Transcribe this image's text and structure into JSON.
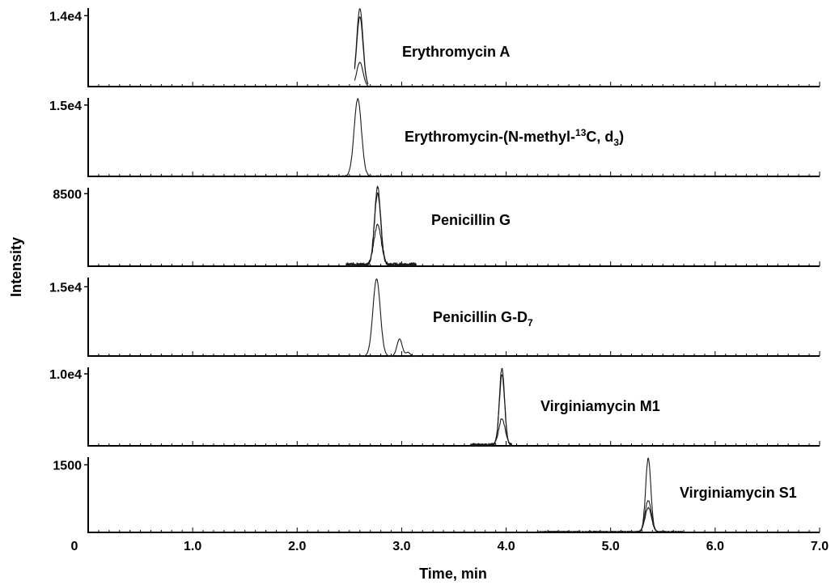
{
  "chart_data": {
    "type": "line",
    "title": "",
    "xlabel": "Time, min",
    "ylabel": "Intensity",
    "xlim": [
      0.0,
      7.0
    ],
    "x_ticks": [
      "1.0",
      "2.0",
      "3.0",
      "4.0",
      "5.0",
      "6.0",
      "7.0"
    ],
    "x_origin_label": "0",
    "grid": false,
    "panels": [
      {
        "name": "Erythromycin A",
        "label_main": "Erythromycin  A",
        "label_sub": "",
        "label_tail": "",
        "label_sup": "",
        "tick_label": "1.4e4",
        "tick_value": 14000,
        "ymax": 15500,
        "traces": [
          {
            "peaks": [
              {
                "x": 2.6,
                "h": 15400,
                "w": 0.03
              }
            ],
            "xmin": 2.55,
            "xmax": 2.68
          },
          {
            "peaks": [
              {
                "x": 2.6,
                "h": 13800,
                "w": 0.03
              }
            ],
            "xmin": 2.55,
            "xmax": 2.68
          },
          {
            "peaks": [
              {
                "x": 2.6,
                "h": 4800,
                "w": 0.03
              }
            ],
            "xmin": 2.55,
            "xmax": 2.68
          }
        ]
      },
      {
        "name": "Erythromycin-(N-methyl-13C, d3)",
        "label_main": "Erythromycin-(N-methyl-",
        "label_sup": "13",
        "label_mid": "C,  d",
        "label_sub": "3",
        "label_tail": ")",
        "tick_label": "1.5e4",
        "tick_value": 15000,
        "ymax": 16500,
        "traces": [
          {
            "peaks": [
              {
                "x": 2.58,
                "h": 16200,
                "w": 0.035
              }
            ],
            "xmin": 2.2,
            "xmax": 2.9,
            "noise": 180
          }
        ]
      },
      {
        "name": "Penicillin G",
        "label_main": "Penicillin G",
        "label_sup": "",
        "label_mid": "",
        "label_sub": "",
        "label_tail": "",
        "tick_label": "8500",
        "tick_value": 8500,
        "ymax": 9200,
        "traces": [
          {
            "peaks": [
              {
                "x": 2.77,
                "h": 9000,
                "w": 0.03
              }
            ],
            "xmin": 2.46,
            "xmax": 3.15,
            "noise": 420
          },
          {
            "peaks": [
              {
                "x": 2.77,
                "h": 8300,
                "w": 0.03
              }
            ],
            "xmin": 2.46,
            "xmax": 3.15,
            "noise": 360
          },
          {
            "peaks": [
              {
                "x": 2.77,
                "h": 4700,
                "w": 0.035
              }
            ],
            "xmin": 2.46,
            "xmax": 3.15,
            "noise": 300
          }
        ]
      },
      {
        "name": "Penicillin G-D7",
        "label_main": "Penicillin G-D",
        "label_sup": "",
        "label_mid": "",
        "label_sub": "7",
        "label_tail": "",
        "tick_label": "1.5e4",
        "tick_value": 15000,
        "ymax": 17000,
        "traces": [
          {
            "peaks": [
              {
                "x": 2.76,
                "h": 16700,
                "w": 0.035
              },
              {
                "x": 2.98,
                "h": 3700,
                "w": 0.025
              },
              {
                "x": 3.06,
                "h": 800,
                "w": 0.02
              }
            ],
            "xmin": 2.5,
            "xmax": 3.15
          }
        ]
      },
      {
        "name": "Virginiamycin M1",
        "label_main": "Virginiamycin  M1",
        "label_sup": "",
        "label_mid": "",
        "label_sub": "",
        "label_tail": "",
        "tick_label": "1.0e4",
        "tick_value": 10000,
        "ymax": 10900,
        "traces": [
          {
            "peaks": [
              {
                "x": 3.96,
                "h": 10600,
                "w": 0.025
              }
            ],
            "xmin": 3.65,
            "xmax": 4.06,
            "noise": 350
          },
          {
            "peaks": [
              {
                "x": 3.96,
                "h": 9700,
                "w": 0.025
              }
            ],
            "xmin": 3.65,
            "xmax": 4.06,
            "noise": 300
          },
          {
            "peaks": [
              {
                "x": 3.96,
                "h": 3700,
                "w": 0.03
              }
            ],
            "xmin": 3.65,
            "xmax": 4.06,
            "noise": 250
          }
        ]
      },
      {
        "name": "Virginiamycin S1",
        "label_main": "Virginiamycin  S1",
        "label_sup": "",
        "label_mid": "",
        "label_sub": "",
        "label_tail": "",
        "tick_label": "1500",
        "tick_value": 1500,
        "ymax": 1670,
        "traces": [
          {
            "peaks": [
              {
                "x": 5.36,
                "h": 1630,
                "w": 0.025
              }
            ],
            "xmin": 4.3,
            "xmax": 5.7,
            "noise": 30
          },
          {
            "peaks": [
              {
                "x": 5.36,
                "h": 700,
                "w": 0.03
              }
            ],
            "xmin": 4.3,
            "xmax": 5.7,
            "noise": 25
          },
          {
            "peaks": [
              {
                "x": 5.36,
                "h": 540,
                "w": 0.03
              }
            ],
            "xmin": 4.3,
            "xmax": 5.7,
            "noise": 25
          }
        ]
      }
    ]
  }
}
